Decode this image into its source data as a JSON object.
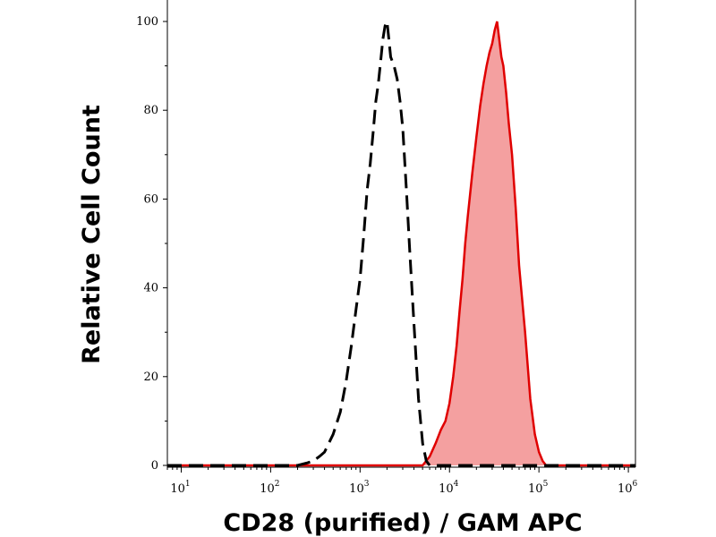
{
  "chart_data": {
    "type": "area",
    "title": "",
    "xlabel": "CD28 (purified) / GAM APC",
    "ylabel": "Relative Cell Count",
    "x_scale": "log",
    "xlim": [
      7,
      1200000
    ],
    "ylim": [
      0,
      100
    ],
    "grid": false,
    "x_ticks": [
      {
        "base": "10",
        "exp": "1",
        "value": 10
      },
      {
        "base": "10",
        "exp": "2",
        "value": 100
      },
      {
        "base": "10",
        "exp": "3",
        "value": 1000
      },
      {
        "base": "10",
        "exp": "4",
        "value": 10000
      },
      {
        "base": "10",
        "exp": "5",
        "value": 100000
      },
      {
        "base": "10",
        "exp": "6",
        "value": 1000000
      }
    ],
    "y_ticks": [
      {
        "label": "0",
        "value": 0
      },
      {
        "label": "20",
        "value": 20
      },
      {
        "label": "40",
        "value": 40
      },
      {
        "label": "60",
        "value": 60
      },
      {
        "label": "80",
        "value": 80
      },
      {
        "label": "100",
        "value": 100
      }
    ],
    "series": [
      {
        "style": "dashed",
        "color": "#000000",
        "fill": "none",
        "x": [
          200,
          250,
          300,
          350,
          400,
          500,
          600,
          700,
          800,
          900,
          1000,
          1100,
          1200,
          1300,
          1400,
          1500,
          1600,
          1700,
          1800,
          1900,
          2000,
          2100,
          2200,
          2400,
          2600,
          2800,
          3000,
          3300,
          3600,
          4000,
          4500,
          5000,
          5500,
          6000,
          7000
        ],
        "y": [
          0,
          0.5,
          1,
          2,
          3,
          7,
          12,
          19,
          27,
          35,
          42,
          52,
          62,
          68,
          75,
          82,
          86,
          91,
          96,
          99,
          100,
          96,
          92,
          90,
          87,
          82,
          76,
          62,
          48,
          32,
          15,
          5,
          1,
          0,
          0
        ]
      },
      {
        "style": "solid",
        "color": "#e00000",
        "fill": "#f4a0a0",
        "x": [
          5000,
          6000,
          7000,
          8000,
          9000,
          10000,
          11000,
          12000,
          13000,
          14000,
          15000,
          16000,
          18000,
          20000,
          22000,
          24000,
          26000,
          28000,
          30000,
          32000,
          34000,
          36000,
          38000,
          40000,
          43000,
          46000,
          50000,
          55000,
          60000,
          70000,
          80000,
          90000,
          100000,
          110000,
          120000,
          140000
        ],
        "y": [
          0,
          2,
          5,
          8,
          10,
          14,
          20,
          27,
          35,
          42,
          50,
          56,
          66,
          74,
          81,
          86,
          90,
          93,
          95,
          98,
          100,
          96,
          92,
          90,
          84,
          77,
          70,
          58,
          45,
          30,
          15,
          7,
          3,
          1,
          0,
          0
        ]
      }
    ]
  }
}
